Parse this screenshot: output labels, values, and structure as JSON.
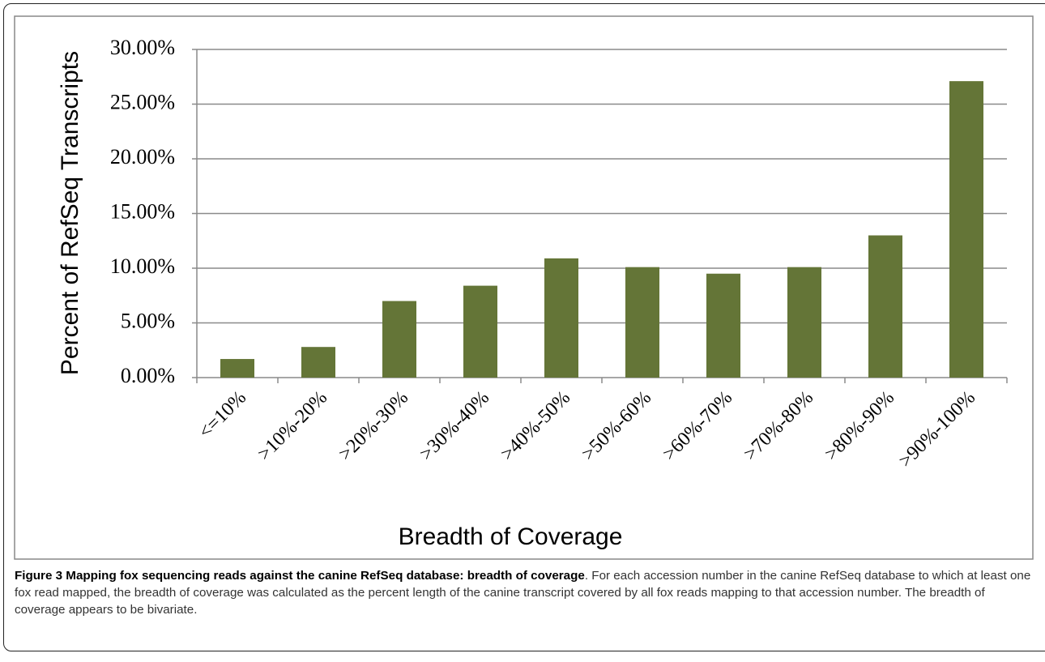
{
  "chart_data": {
    "type": "bar",
    "ylabel": "Percent of RefSeq Transcripts",
    "xlabel": "Breadth of Coverage",
    "categories": [
      "<=10%",
      ">10%-20%",
      ">20%-30%",
      ">30%-40%",
      ">40%-50%",
      ">50%-60%",
      ">60%-70%",
      ">70%-80%",
      ">80%-90%",
      ">90%-100%"
    ],
    "values": [
      1.7,
      2.8,
      7.0,
      8.4,
      10.9,
      10.1,
      9.5,
      10.1,
      13.0,
      27.1
    ],
    "color": "#647537",
    "ylim": [
      0,
      30
    ],
    "yticks": [
      {
        "value": 0,
        "label": "0.00%"
      },
      {
        "value": 5,
        "label": "5.00%"
      },
      {
        "value": 10,
        "label": "10.00%"
      },
      {
        "value": 15,
        "label": "15.00%"
      },
      {
        "value": 20,
        "label": "20.00%"
      },
      {
        "value": 25,
        "label": "25.00%"
      },
      {
        "value": 30,
        "label": "30.00%"
      }
    ],
    "grid": true
  },
  "caption": {
    "title": "Figure 3 Mapping fox sequencing reads against the canine RefSeq database: breadth of coverage",
    "text": ". For each accession number in the canine RefSeq database to which at least one fox read mapped, the breadth of coverage was calculated as the percent length of the canine transcript covered by all fox reads mapping to that accession number. The breadth of coverage appears to be bivariate."
  }
}
